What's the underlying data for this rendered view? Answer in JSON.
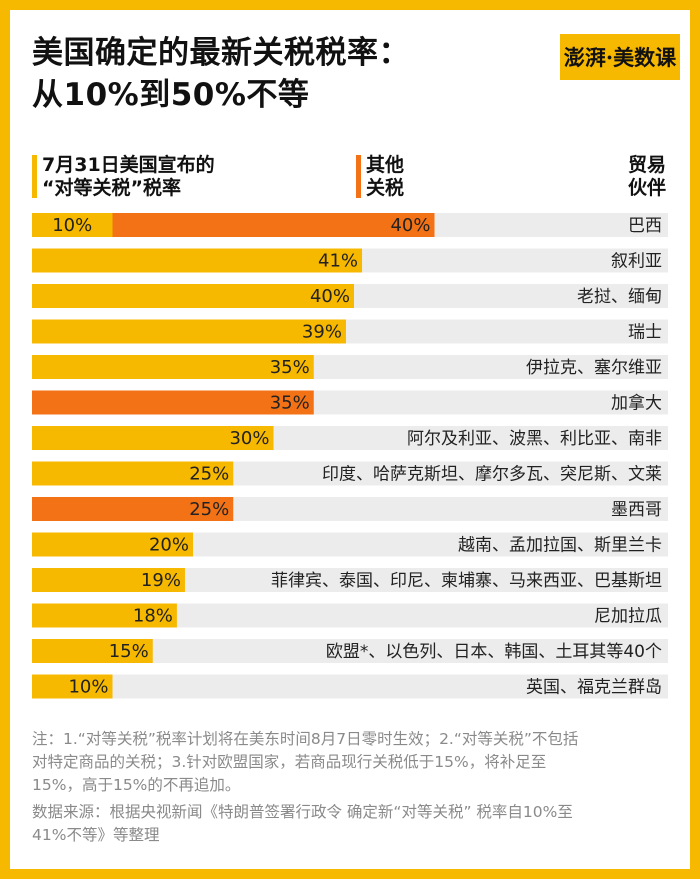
{
  "title": [
    "美国确定的最新关税税率：",
    "从10%到50%不等"
  ],
  "brand": "澎湃·美数课",
  "legend": {
    "reciprocal": [
      "7月31日美国宣布的",
      "“对等关税”税率"
    ],
    "other": [
      "其他",
      "关税"
    ],
    "partner": [
      "贸易",
      "伙伴"
    ]
  },
  "colors": {
    "reciprocal": "#f7b800",
    "highlight": "#f27215",
    "other": "#f27215",
    "row_bg": "#ececec"
  },
  "chart_data": {
    "type": "bar",
    "orientation": "horizontal",
    "stacked": true,
    "rows": [
      {
        "partner": "巴西",
        "reciprocal": 10,
        "other": 40,
        "label": "40%",
        "reciprocal_label": "10%"
      },
      {
        "partner": "叙利亚",
        "reciprocal": 41,
        "other": 0,
        "label": "41%"
      },
      {
        "partner": "老挝、缅甸",
        "reciprocal": 40,
        "other": 0,
        "label": "40%"
      },
      {
        "partner": "瑞士",
        "reciprocal": 39,
        "other": 0,
        "label": "39%"
      },
      {
        "partner": "伊拉克、塞尔维亚",
        "reciprocal": 35,
        "other": 0,
        "label": "35%"
      },
      {
        "partner": "加拿大",
        "reciprocal": 35,
        "other": 0,
        "label": "35%",
        "highlight": true
      },
      {
        "partner": "阿尔及利亚、波黑、利比亚、南非",
        "reciprocal": 30,
        "other": 0,
        "label": "30%"
      },
      {
        "partner": "印度、哈萨克斯坦、摩尔多瓦、突尼斯、文莱",
        "reciprocal": 25,
        "other": 0,
        "label": "25%"
      },
      {
        "partner": "墨西哥",
        "reciprocal": 25,
        "other": 0,
        "label": "25%",
        "highlight": true
      },
      {
        "partner": "越南、孟加拉国、斯里兰卡",
        "reciprocal": 20,
        "other": 0,
        "label": "20%"
      },
      {
        "partner": "菲律宾、泰国、印尼、柬埔寨、马来西亚、巴基斯坦",
        "reciprocal": 19,
        "other": 0,
        "label": "19%"
      },
      {
        "partner": "尼加拉瓜",
        "reciprocal": 18,
        "other": 0,
        "label": "18%"
      },
      {
        "partner": "欧盟*、以色列、日本、韩国、土耳其等40个",
        "reciprocal": 15,
        "other": 0,
        "label": "15%"
      },
      {
        "partner": "英国、福克兰群岛",
        "reciprocal": 10,
        "other": 0,
        "label": "10%"
      }
    ],
    "xlim": [
      0,
      50
    ],
    "grid": false
  },
  "note": [
    "注：1.“对等关税”税率计划将在美东时间8月7日零时生效；2.“对等关税”不包括",
    "对特定商品的关税；3.针对欧盟国家，若商品现行关税低于15%，将补足至",
    "15%，高于15%的不再追加。"
  ],
  "source": [
    "数据来源：根据央视新闻《特朗普签署行政令  确定新“对等关税” 税率自10%至",
    "41%不等》等整理"
  ]
}
